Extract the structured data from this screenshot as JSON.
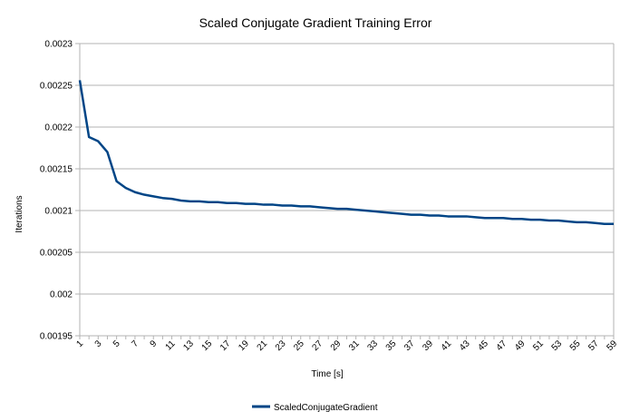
{
  "chart_data": {
    "type": "line",
    "title": "Scaled Conjugate Gradient Training Error",
    "xlabel": "Time [s]",
    "ylabel": "Iterations",
    "ylim": [
      0.00195,
      0.0023
    ],
    "yticks": [
      "0.0023",
      "0.00225",
      "0.0022",
      "0.00215",
      "0.0021",
      "0.00205",
      "0.002",
      "0.00195"
    ],
    "ytick_values": [
      0.0023,
      0.00225,
      0.0022,
      0.00215,
      0.0021,
      0.00205,
      0.002,
      0.00195
    ],
    "x": [
      1,
      2,
      3,
      4,
      5,
      6,
      7,
      8,
      9,
      10,
      11,
      12,
      13,
      14,
      15,
      16,
      17,
      18,
      19,
      20,
      21,
      22,
      23,
      24,
      25,
      26,
      27,
      28,
      29,
      30,
      31,
      32,
      33,
      34,
      35,
      36,
      37,
      38,
      39,
      40,
      41,
      42,
      43,
      44,
      45,
      46,
      47,
      48,
      49,
      50,
      51,
      52,
      53,
      54,
      55,
      56,
      57,
      58,
      59
    ],
    "xtick_labels": [
      "1",
      "3",
      "5",
      "7",
      "9",
      "11",
      "13",
      "15",
      "17",
      "19",
      "21",
      "23",
      "25",
      "27",
      "29",
      "31",
      "33",
      "35",
      "37",
      "39",
      "41",
      "43",
      "45",
      "47",
      "49",
      "51",
      "53",
      "55",
      "57",
      "59"
    ],
    "grid": true,
    "legend_position": "bottom",
    "series": [
      {
        "name": "ScaledConjugateGradient",
        "color": "#004586",
        "values": [
          0.002256,
          0.002188,
          0.002183,
          0.00217,
          0.002135,
          0.002127,
          0.002122,
          0.002119,
          0.002117,
          0.002115,
          0.002114,
          0.002112,
          0.002111,
          0.002111,
          0.00211,
          0.00211,
          0.002109,
          0.002109,
          0.002108,
          0.002108,
          0.002107,
          0.002107,
          0.002106,
          0.002106,
          0.002105,
          0.002105,
          0.002104,
          0.002103,
          0.002102,
          0.002102,
          0.002101,
          0.0021,
          0.002099,
          0.002098,
          0.002097,
          0.002096,
          0.002095,
          0.002095,
          0.002094,
          0.002094,
          0.002093,
          0.002093,
          0.002093,
          0.002092,
          0.002091,
          0.002091,
          0.002091,
          0.00209,
          0.00209,
          0.002089,
          0.002089,
          0.002088,
          0.002088,
          0.002087,
          0.002086,
          0.002086,
          0.002085,
          0.002084,
          0.002084
        ]
      }
    ]
  }
}
